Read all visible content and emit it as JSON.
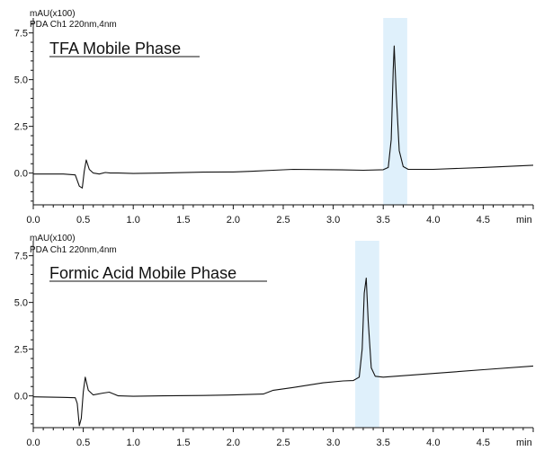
{
  "chart_data": [
    {
      "type": "line",
      "y_unit_label": "mAU(x100)",
      "detector_label": "PDA Ch1 220nm,4nm",
      "title": "TFA Mobile Phase",
      "x_unit_label": "min",
      "xlim": [
        0,
        5.0
      ],
      "ylim": [
        -1.7,
        8.3
      ],
      "x_ticks": [
        "0.0",
        "0.5",
        "1.0",
        "1.5",
        "2.0",
        "2.5",
        "3.0",
        "3.5",
        "4.0",
        "4.5"
      ],
      "y_ticks": [
        "7.5",
        "5.0",
        "2.5",
        "0.0"
      ],
      "highlight_x_range": [
        3.5,
        3.74
      ],
      "highlight_color": "#dff0fb",
      "line_color": "#111111",
      "series": [
        {
          "x": [
            0.0,
            0.3,
            0.42,
            0.46,
            0.49,
            0.51,
            0.53,
            0.56,
            0.6,
            0.66,
            0.72,
            0.77,
            0.85,
            1.0,
            1.3,
            1.7,
            2.0,
            2.2,
            2.4,
            2.6,
            3.0,
            3.3,
            3.5,
            3.55,
            3.58,
            3.6,
            3.61,
            3.63,
            3.66,
            3.7,
            3.75,
            4.0,
            4.5,
            5.0
          ],
          "y": [
            -0.05,
            -0.05,
            -0.1,
            -0.7,
            -0.8,
            0.1,
            0.7,
            0.2,
            0.0,
            -0.05,
            0.03,
            0.0,
            0.0,
            -0.02,
            0.0,
            0.05,
            0.06,
            0.1,
            0.15,
            0.2,
            0.18,
            0.15,
            0.18,
            0.3,
            1.8,
            5.5,
            6.8,
            4.2,
            1.2,
            0.35,
            0.2,
            0.2,
            0.3,
            0.42
          ]
        }
      ]
    },
    {
      "type": "line",
      "y_unit_label": "mAU(x100)",
      "detector_label": "PDA Ch1 220nm,4nm",
      "title": "Formic Acid Mobile Phase",
      "x_unit_label": "min",
      "xlim": [
        0,
        5.0
      ],
      "ylim": [
        -1.7,
        8.3
      ],
      "x_ticks": [
        "0.0",
        "0.5",
        "1.0",
        "1.5",
        "2.0",
        "2.5",
        "3.0",
        "3.5",
        "4.0",
        "4.5"
      ],
      "y_ticks": [
        "7.5",
        "5.0",
        "2.5",
        "0.0"
      ],
      "highlight_x_range": [
        3.22,
        3.46
      ],
      "highlight_color": "#dff0fb",
      "line_color": "#111111",
      "series": [
        {
          "x": [
            0.0,
            0.3,
            0.42,
            0.44,
            0.46,
            0.48,
            0.5,
            0.52,
            0.55,
            0.6,
            0.7,
            0.76,
            0.85,
            1.0,
            1.3,
            1.7,
            2.0,
            2.3,
            2.4,
            2.6,
            2.9,
            3.1,
            3.2,
            3.26,
            3.29,
            3.31,
            3.33,
            3.35,
            3.38,
            3.42,
            3.5,
            4.0,
            4.5,
            5.0
          ],
          "y": [
            -0.05,
            -0.08,
            -0.1,
            -0.4,
            -1.6,
            -1.2,
            0.2,
            1.0,
            0.3,
            0.05,
            0.15,
            0.2,
            0.0,
            -0.02,
            0.0,
            0.02,
            0.05,
            0.1,
            0.3,
            0.45,
            0.7,
            0.8,
            0.82,
            1.0,
            2.5,
            5.5,
            6.3,
            4.0,
            1.5,
            1.05,
            1.0,
            1.2,
            1.4,
            1.6
          ]
        }
      ]
    }
  ]
}
